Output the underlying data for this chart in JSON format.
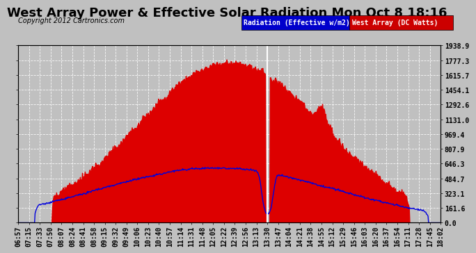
{
  "title": "West Array Power & Effective Solar Radiation Mon Oct 8 18:16",
  "copyright": "Copyright 2012 Cartronics.com",
  "legend_radiation": "Radiation (Effective w/m2)",
  "legend_west": "West Array (DC Watts)",
  "legend_radiation_color": "#0000cc",
  "legend_west_color": "#cc0000",
  "background_color": "#c0c0c0",
  "plot_bg_color": "#c0c0c0",
  "red_fill_color": "#dd0000",
  "blue_line_color": "#0000dd",
  "white_spike_color": "#ffffff",
  "grid_color": "#ffffff",
  "y_max": 1938.9,
  "y_min": 0.0,
  "y_ticks": [
    0.0,
    161.6,
    323.1,
    484.7,
    646.3,
    807.9,
    969.4,
    1131.0,
    1292.6,
    1454.1,
    1615.7,
    1777.3,
    1938.9
  ],
  "x_tick_labels": [
    "06:57",
    "07:15",
    "07:33",
    "07:50",
    "08:07",
    "08:24",
    "08:41",
    "08:58",
    "09:15",
    "09:32",
    "09:49",
    "10:06",
    "10:23",
    "10:40",
    "10:57",
    "11:14",
    "11:31",
    "11:48",
    "12:05",
    "12:22",
    "12:39",
    "12:56",
    "13:13",
    "13:30",
    "13:47",
    "14:04",
    "14:21",
    "14:38",
    "14:55",
    "15:12",
    "15:29",
    "15:46",
    "16:03",
    "16:20",
    "16:37",
    "16:54",
    "17:11",
    "17:28",
    "17:45",
    "18:02"
  ],
  "title_fontsize": 13,
  "axis_fontsize": 7,
  "copyright_fontsize": 7,
  "legend_fontsize": 7
}
